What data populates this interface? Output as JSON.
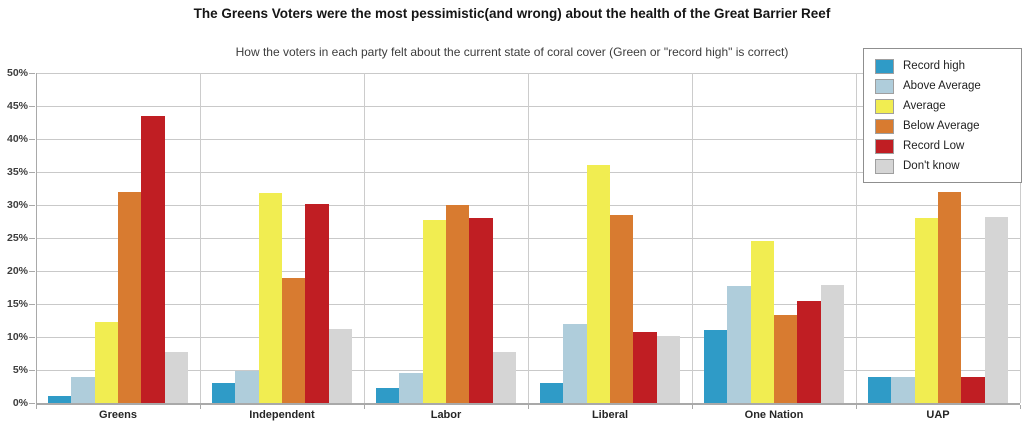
{
  "chart_data": {
    "type": "bar",
    "title": "The Greens Voters were the most pessimistic(and wrong) about the health of the Great Barrier Reef",
    "subtitle": "How the voters in each party felt about the current state of coral cover (Green or \"record high\" is correct)",
    "categories": [
      "Greens",
      "Independent",
      "Labor",
      "Liberal",
      "One Nation",
      "UAP"
    ],
    "series": [
      {
        "name": "Record high",
        "color": "#2F9BC7",
        "values": [
          1,
          3,
          2.3,
          3,
          11,
          4
        ]
      },
      {
        "name": "Above Average",
        "color": "#AFCDDB",
        "values": [
          4,
          4.8,
          4.5,
          12,
          17.8,
          4
        ]
      },
      {
        "name": "Average",
        "color": "#F1ED51",
        "values": [
          12.2,
          31.8,
          27.8,
          36,
          24.5,
          28
        ]
      },
      {
        "name": "Below Average",
        "color": "#D87B30",
        "values": [
          32,
          19,
          30,
          28.5,
          13.3,
          32
        ]
      },
      {
        "name": "Record Low",
        "color": "#C01E23",
        "values": [
          43.5,
          30.2,
          28,
          10.8,
          15.5,
          4
        ]
      },
      {
        "name": "Don't know",
        "color": "#D5D5D5",
        "values": [
          7.8,
          11.2,
          7.8,
          10.2,
          17.9,
          28.2
        ]
      }
    ],
    "y_ticks": [
      "0%",
      "5%",
      "10%",
      "15%",
      "20%",
      "25%",
      "30%",
      "35%",
      "40%",
      "45%",
      "50%"
    ],
    "ylim": [
      0,
      50
    ],
    "xlabel": "",
    "ylabel": "",
    "grid": true,
    "legend_position": "top-right"
  },
  "colors": {
    "background": "#FFFFFF",
    "gridline": "#C9C9C9",
    "axis": "#A9A9A9",
    "legend_border": "#8F8F8F"
  }
}
